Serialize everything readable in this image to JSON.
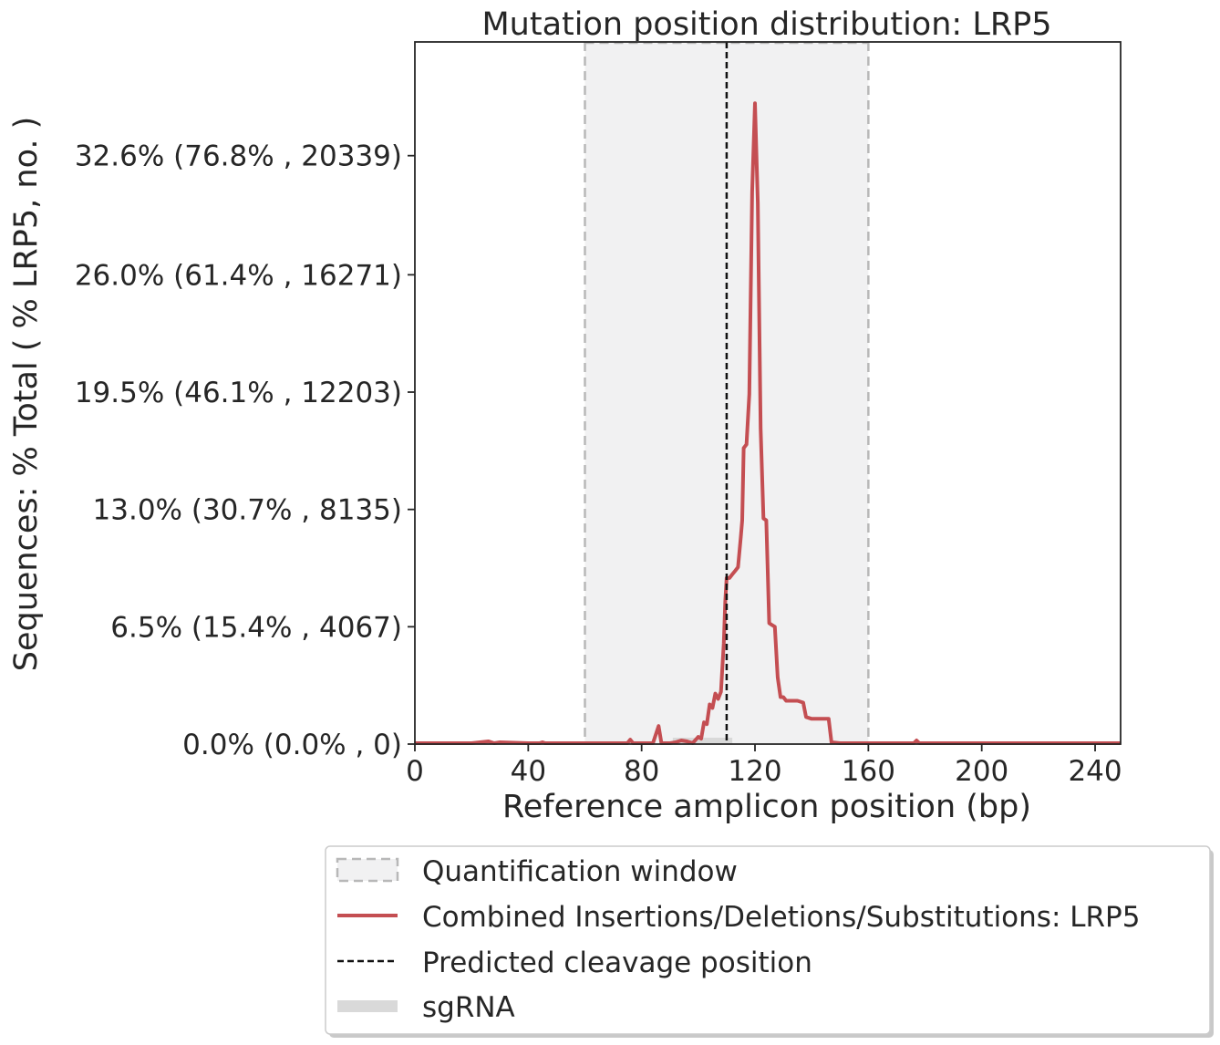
{
  "chart_data": {
    "type": "line",
    "title": "Mutation position distribution: LRP5",
    "xlabel": "Reference amplicon position (bp)",
    "ylabel": "Sequences: % Total ( % LRP5, no. )",
    "xlim": [
      0,
      249
    ],
    "ylim": [
      0,
      38.9
    ],
    "x_ticks": [
      0,
      40,
      80,
      120,
      160,
      200,
      240
    ],
    "y_ticks": [
      {
        "value": 0.0,
        "label": "0.0% (0.0% , 0)"
      },
      {
        "value": 6.5,
        "label": "6.5% (15.4% , 4067)"
      },
      {
        "value": 13.0,
        "label": "13.0% (30.7% , 8135)"
      },
      {
        "value": 19.5,
        "label": "19.5% (46.1% , 12203)"
      },
      {
        "value": 26.0,
        "label": "26.0% (61.4% , 16271)"
      },
      {
        "value": 32.6,
        "label": "32.6% (76.8% , 20339)"
      }
    ],
    "quantification_window": [
      60,
      160
    ],
    "predicted_cleavage_position": 110,
    "sgrna": [
      91,
      112
    ],
    "series": [
      {
        "name": "Combined Insertions/Deletions/Substitutions: LRP5",
        "color": "#c44e52",
        "points": [
          [
            0,
            0.05
          ],
          [
            10,
            0.05
          ],
          [
            20,
            0.05
          ],
          [
            26,
            0.15
          ],
          [
            28,
            0.05
          ],
          [
            30,
            0.1
          ],
          [
            40,
            0.05
          ],
          [
            44,
            0.05
          ],
          [
            45,
            0.1
          ],
          [
            46,
            0.05
          ],
          [
            60,
            0.05
          ],
          [
            75,
            0.05
          ],
          [
            76,
            0.25
          ],
          [
            77,
            0.05
          ],
          [
            84,
            0.05
          ],
          [
            86,
            1.0
          ],
          [
            87,
            0.05
          ],
          [
            90,
            0.05
          ],
          [
            92,
            0.1
          ],
          [
            94,
            0.2
          ],
          [
            96,
            0.15
          ],
          [
            98,
            0.05
          ],
          [
            100,
            0.4
          ],
          [
            101,
            0.3
          ],
          [
            102,
            1.2
          ],
          [
            103,
            1.1
          ],
          [
            104,
            2.2
          ],
          [
            105,
            2.0
          ],
          [
            106,
            2.8
          ],
          [
            107,
            2.5
          ],
          [
            108,
            2.9
          ],
          [
            109,
            5.6
          ],
          [
            109.5,
            7.9
          ],
          [
            110,
            9.2
          ],
          [
            111,
            9.2
          ],
          [
            112,
            9.4
          ],
          [
            113,
            9.6
          ],
          [
            114,
            9.8
          ],
          [
            115,
            11.5
          ],
          [
            115.5,
            12.4
          ],
          [
            116,
            16.4
          ],
          [
            117,
            16.6
          ],
          [
            118,
            19.4
          ],
          [
            119,
            30.6
          ],
          [
            120,
            35.5
          ],
          [
            121,
            30.0
          ],
          [
            122,
            17.5
          ],
          [
            123,
            12.5
          ],
          [
            124,
            12.4
          ],
          [
            125,
            6.7
          ],
          [
            126,
            6.6
          ],
          [
            127,
            6.5
          ],
          [
            128,
            3.7
          ],
          [
            129,
            2.6
          ],
          [
            130,
            2.6
          ],
          [
            131,
            2.4
          ],
          [
            132,
            2.4
          ],
          [
            135,
            2.4
          ],
          [
            137,
            2.3
          ],
          [
            138,
            1.5
          ],
          [
            140,
            1.4
          ],
          [
            142,
            1.4
          ],
          [
            146,
            1.4
          ],
          [
            147,
            0.1
          ],
          [
            150,
            0.05
          ],
          [
            160,
            0.05
          ],
          [
            176,
            0.05
          ],
          [
            177,
            0.2
          ],
          [
            178,
            0.05
          ],
          [
            200,
            0.05
          ],
          [
            220,
            0.05
          ],
          [
            249,
            0.05
          ]
        ]
      }
    ],
    "legend": [
      {
        "label": "Quantification window",
        "type": "window"
      },
      {
        "label": "Combined Insertions/Deletions/Substitutions: LRP5",
        "type": "line"
      },
      {
        "label": "Predicted cleavage position",
        "type": "dashed"
      },
      {
        "label": "sgRNA",
        "type": "bar"
      }
    ],
    "legend_position": "bottom-outside",
    "grid": false
  }
}
